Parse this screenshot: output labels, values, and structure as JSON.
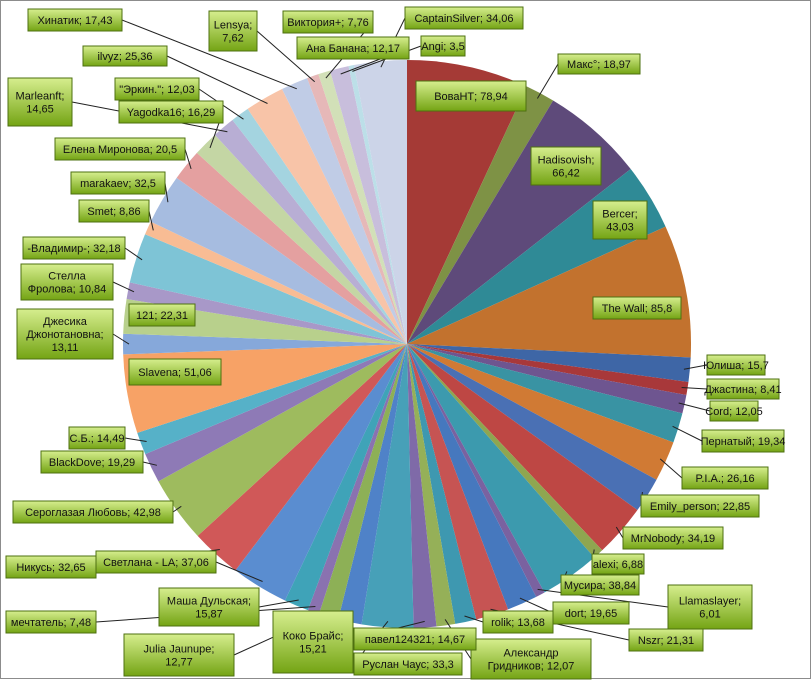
{
  "chart_data": {
    "type": "pie",
    "title": "",
    "legend": "none",
    "slices": [
      {
        "label": "ВоваНТ; 78,94",
        "name": "ВоваНТ",
        "value": 78.94,
        "color": "#A53A36"
      },
      {
        "label": "Макс°; 18,97",
        "name": "Макс°",
        "value": 18.97,
        "color": "#7E9245"
      },
      {
        "label": "Hadisovish; 66,42",
        "name": "Hadisovish",
        "value": 66.42,
        "color": "#5E4A7A"
      },
      {
        "label": "Bercer; 43,03",
        "name": "Bercer",
        "value": 43.03,
        "color": "#2F8A96"
      },
      {
        "label": "The Wall; 85,8",
        "name": "The Wall",
        "value": 85.8,
        "color": "#C2722E"
      },
      {
        "label": "Юлиша; 15,7",
        "name": "Юлиша",
        "value": 15.7,
        "color": "#3E66A6"
      },
      {
        "label": "Джастина; 8,41",
        "name": "Джастина",
        "value": 8.41,
        "color": "#A8383A"
      },
      {
        "label": "Cord; 12,05",
        "name": "Cord",
        "value": 12.05,
        "color": "#6E5590"
      },
      {
        "label": "Пернатый; 19,34",
        "name": "Пернатый",
        "value": 19.34,
        "color": "#3993A3"
      },
      {
        "label": "P.I.A.; 26,16",
        "name": "P.I.A.",
        "value": 26.16,
        "color": "#D07A34"
      },
      {
        "label": "Emily_person; 22,85",
        "name": "Emily_person",
        "value": 22.85,
        "color": "#4A70B4"
      },
      {
        "label": "MrNobody; 34,19",
        "name": "MrNobody",
        "value": 34.19,
        "color": "#BE4744"
      },
      {
        "label": "alexi; 6,88",
        "name": "alexi",
        "value": 6.88,
        "color": "#8FA650"
      },
      {
        "label": "Мусира; 38,84",
        "name": "Мусира",
        "value": 38.84,
        "color": "#3C9AAE"
      },
      {
        "label": "Llamaslayer; 6,01",
        "name": "Llamaslayer",
        "value": 6.01,
        "color": "#7A62A0"
      },
      {
        "label": "dort; 19,65",
        "name": "dort",
        "value": 19.65,
        "color": "#4678BE"
      },
      {
        "label": "Nszr; 21,31",
        "name": "Nszr",
        "value": 21.31,
        "color": "#C65453"
      },
      {
        "label": "rolik; 13,68",
        "name": "rolik",
        "value": 13.68,
        "color": "#3E98B0"
      },
      {
        "label": "Александр Гридников; 12,07",
        "name": "Александр Гридников",
        "value": 12.07,
        "color": "#95B058"
      },
      {
        "label": "павел124321; 14,67",
        "name": "павел124321",
        "value": 14.67,
        "color": "#7F6AA8"
      },
      {
        "label": "Руслан Чаус; 33,3",
        "name": "Руслан Чаус",
        "value": 33.3,
        "color": "#47A0B8"
      },
      {
        "label": "Коко Брайс; 15,21",
        "name": "Коко Брайс",
        "value": 15.21,
        "color": "#4F82C8"
      },
      {
        "label": "Julia Jaunupe; 12,77",
        "name": "Julia Jaunupe",
        "value": 12.77,
        "color": "#8DB056"
      },
      {
        "label": "мечтатель; 7,48",
        "name": "мечтатель",
        "value": 7.48,
        "color": "#8A72B0"
      },
      {
        "label": "Маша Дульская; 15,87",
        "name": "Маша Дульская",
        "value": 15.87,
        "color": "#3FA3B8"
      },
      {
        "label": "Светлана - LA; 37,06",
        "name": "Светлана - LA",
        "value": 37.06,
        "color": "#5A8DD0"
      },
      {
        "label": "Никусь; 32,65",
        "name": "Никусь",
        "value": 32.65,
        "color": "#D05858"
      },
      {
        "label": "Сероглазая Любовь; 42,98",
        "name": "Сероглазая Любовь",
        "value": 42.98,
        "color": "#9EBB5E"
      },
      {
        "label": "BlackDove; 19,29",
        "name": "BlackDove",
        "value": 19.29,
        "color": "#8E7AB6"
      },
      {
        "label": "С.Б.; 14,49",
        "name": "С.Б.",
        "value": 14.49,
        "color": "#56B1C8"
      },
      {
        "label": "Slavena; 51,06",
        "name": "Slavena",
        "value": 51.06,
        "color": "#F7A266"
      },
      {
        "label": "Джесика Джонотановна; 13,11",
        "name": "Джесика Джонотановна",
        "value": 13.11,
        "color": "#86A8DA"
      },
      {
        "label": "121; 22,31",
        "name": "121",
        "value": 22.31,
        "color": "#B8D08C"
      },
      {
        "label": "Стелла Фролова; 10,84",
        "name": "Стелла Фролова",
        "value": 10.84,
        "color": "#A898C8"
      },
      {
        "label": "-Владимир-; 32,18",
        "name": "-Владимир-",
        "value": 32.18,
        "color": "#7EC4D6"
      },
      {
        "label": "Smet; 8,86",
        "name": "Smet",
        "value": 8.86,
        "color": "#F8BC94"
      },
      {
        "label": "marakaev; 32,5",
        "name": "marakaev",
        "value": 32.5,
        "color": "#A6BCE0"
      },
      {
        "label": "Елена Миронова; 20,5",
        "name": "Елена Миронова",
        "value": 20.5,
        "color": "#E4A0A0"
      },
      {
        "label": "Yagodka16; 16,29",
        "name": "Yagodka16",
        "value": 16.29,
        "color": "#C4D6A4"
      },
      {
        "label": "Marleanft; 14,65",
        "name": "Marleanft",
        "value": 14.65,
        "color": "#B8AED4"
      },
      {
        "label": "\"Эркин.\"; 12,03",
        "name": "\"Эркин.\"",
        "value": 12.03,
        "color": "#A4D4E0"
      },
      {
        "label": "ilvyz; 25,36",
        "name": "ilvyz",
        "value": 25.36,
        "color": "#F8C4A8"
      },
      {
        "label": "Хинатик; 17,43",
        "name": "Хинатик",
        "value": 17.43,
        "color": "#C0CCE6"
      },
      {
        "label": "Lensya; 7,62",
        "name": "Lensya",
        "value": 7.62,
        "color": "#E6B8B8"
      },
      {
        "label": "Виктория+; 7,76",
        "name": "Виктория+",
        "value": 7.76,
        "color": "#D2E0B8"
      },
      {
        "label": "Ана Банана; 12,17",
        "name": "Ана Банана",
        "value": 12.17,
        "color": "#C8BEDC"
      },
      {
        "label": "Angi; 3,5",
        "name": "Angi",
        "value": 3.5,
        "color": "#BCDFE8"
      },
      {
        "label": "CaptainSilver; 34,06",
        "name": "CaptainSilver",
        "value": 34.06,
        "color": "#CCD4E8"
      }
    ],
    "label_style": {
      "box_fill_top": "#D6EE8E",
      "box_fill_bottom": "#74A414",
      "box_stroke": "#4E7010",
      "leader_color": "#222222"
    }
  }
}
